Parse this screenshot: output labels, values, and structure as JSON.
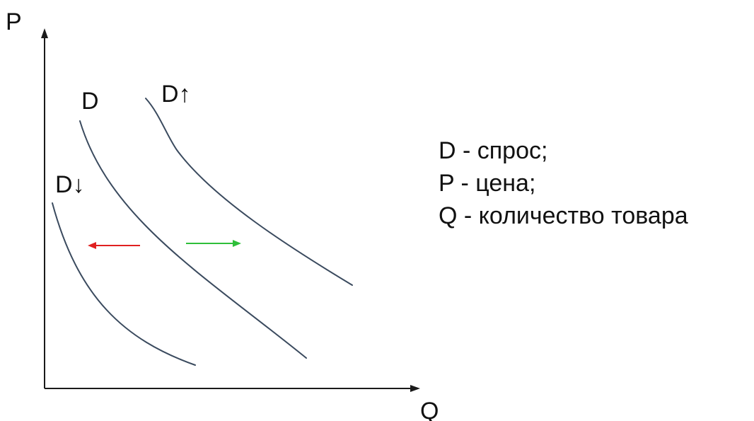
{
  "axes": {
    "y_label": "P",
    "x_label": "Q"
  },
  "curves": {
    "base_label": "D",
    "increase_label": "D↑",
    "decrease_label": "D↓"
  },
  "arrows": {
    "left_color": "#e02020",
    "right_color": "#2fbf3a"
  },
  "legend": {
    "items": [
      "D - спрос;",
      "P - цена;",
      "Q - количество товара"
    ]
  }
}
